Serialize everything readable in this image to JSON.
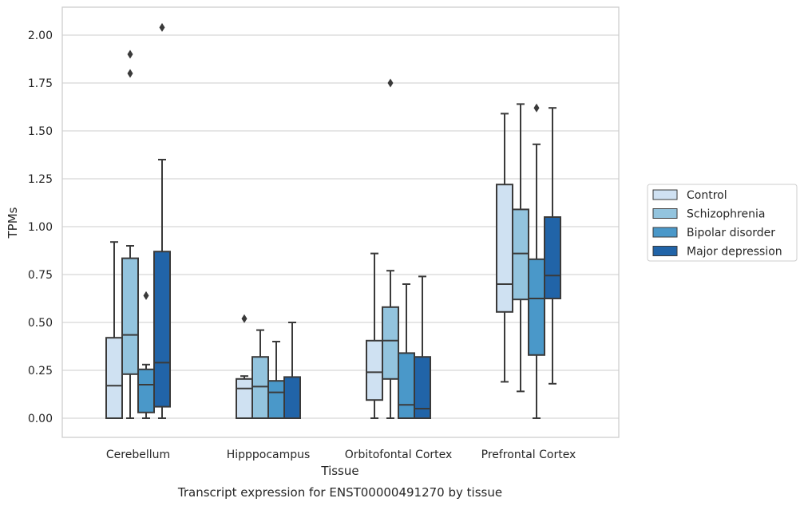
{
  "chart_data": {
    "type": "box",
    "title": "Transcript expression for ENST00000491270 by tissue",
    "xlabel": "Tissue",
    "ylabel": "TPMs",
    "ylim": [
      -0.1,
      2.15
    ],
    "yticks": [
      "0.00",
      "0.25",
      "0.50",
      "0.75",
      "1.00",
      "1.25",
      "1.50",
      "1.75",
      "2.00"
    ],
    "grid": true,
    "legend_position": "right",
    "categories": [
      "Cerebellum",
      "Hipppocampus",
      "Orbitofontal Cortex",
      "Prefrontal Cortex"
    ],
    "series": [
      {
        "name": "Control",
        "color": "#cfe1f2",
        "boxes": [
          {
            "whisker_low": 0.0,
            "q1": 0.0,
            "median": 0.17,
            "q3": 0.42,
            "whisker_high": 0.92,
            "outliers": []
          },
          {
            "whisker_low": 0.0,
            "q1": 0.0,
            "median": 0.155,
            "q3": 0.205,
            "whisker_high": 0.22,
            "outliers": [
              0.52
            ]
          },
          {
            "whisker_low": 0.0,
            "q1": 0.095,
            "median": 0.24,
            "q3": 0.405,
            "whisker_high": 0.86,
            "outliers": []
          },
          {
            "whisker_low": 0.19,
            "q1": 0.555,
            "median": 0.7,
            "q3": 1.22,
            "whisker_high": 1.59,
            "outliers": []
          }
        ]
      },
      {
        "name": "Schizophrenia",
        "color": "#93c4de",
        "boxes": [
          {
            "whisker_low": 0.0,
            "q1": 0.23,
            "median": 0.435,
            "q3": 0.835,
            "whisker_high": 0.9,
            "outliers": [
              1.8,
              1.9
            ]
          },
          {
            "whisker_low": 0.0,
            "q1": 0.0,
            "median": 0.165,
            "q3": 0.32,
            "whisker_high": 0.46,
            "outliers": []
          },
          {
            "whisker_low": 0.0,
            "q1": 0.205,
            "median": 0.405,
            "q3": 0.58,
            "whisker_high": 0.77,
            "outliers": [
              1.75
            ]
          },
          {
            "whisker_low": 0.14,
            "q1": 0.62,
            "median": 0.86,
            "q3": 1.09,
            "whisker_high": 1.64,
            "outliers": []
          }
        ]
      },
      {
        "name": "Bipolar disorder",
        "color": "#4a98c9",
        "boxes": [
          {
            "whisker_low": 0.0,
            "q1": 0.03,
            "median": 0.175,
            "q3": 0.255,
            "whisker_high": 0.28,
            "outliers": [
              0.64
            ]
          },
          {
            "whisker_low": 0.0,
            "q1": 0.0,
            "median": 0.135,
            "q3": 0.195,
            "whisker_high": 0.4,
            "outliers": []
          },
          {
            "whisker_low": 0.0,
            "q1": 0.0,
            "median": 0.07,
            "q3": 0.34,
            "whisker_high": 0.7,
            "outliers": []
          },
          {
            "whisker_low": 0.0,
            "q1": 0.33,
            "median": 0.625,
            "q3": 0.83,
            "whisker_high": 1.43,
            "outliers": [
              1.62
            ]
          }
        ]
      },
      {
        "name": "Major depression",
        "color": "#2164a8",
        "boxes": [
          {
            "whisker_low": 0.0,
            "q1": 0.06,
            "median": 0.29,
            "q3": 0.87,
            "whisker_high": 1.35,
            "outliers": [
              2.04
            ]
          },
          {
            "whisker_low": 0.0,
            "q1": 0.0,
            "median": 0.0,
            "q3": 0.215,
            "whisker_high": 0.5,
            "outliers": []
          },
          {
            "whisker_low": 0.0,
            "q1": 0.0,
            "median": 0.05,
            "q3": 0.32,
            "whisker_high": 0.74,
            "outliers": []
          },
          {
            "whisker_low": 0.18,
            "q1": 0.625,
            "median": 0.745,
            "q3": 1.05,
            "whisker_high": 1.62,
            "outliers": []
          }
        ]
      }
    ]
  }
}
